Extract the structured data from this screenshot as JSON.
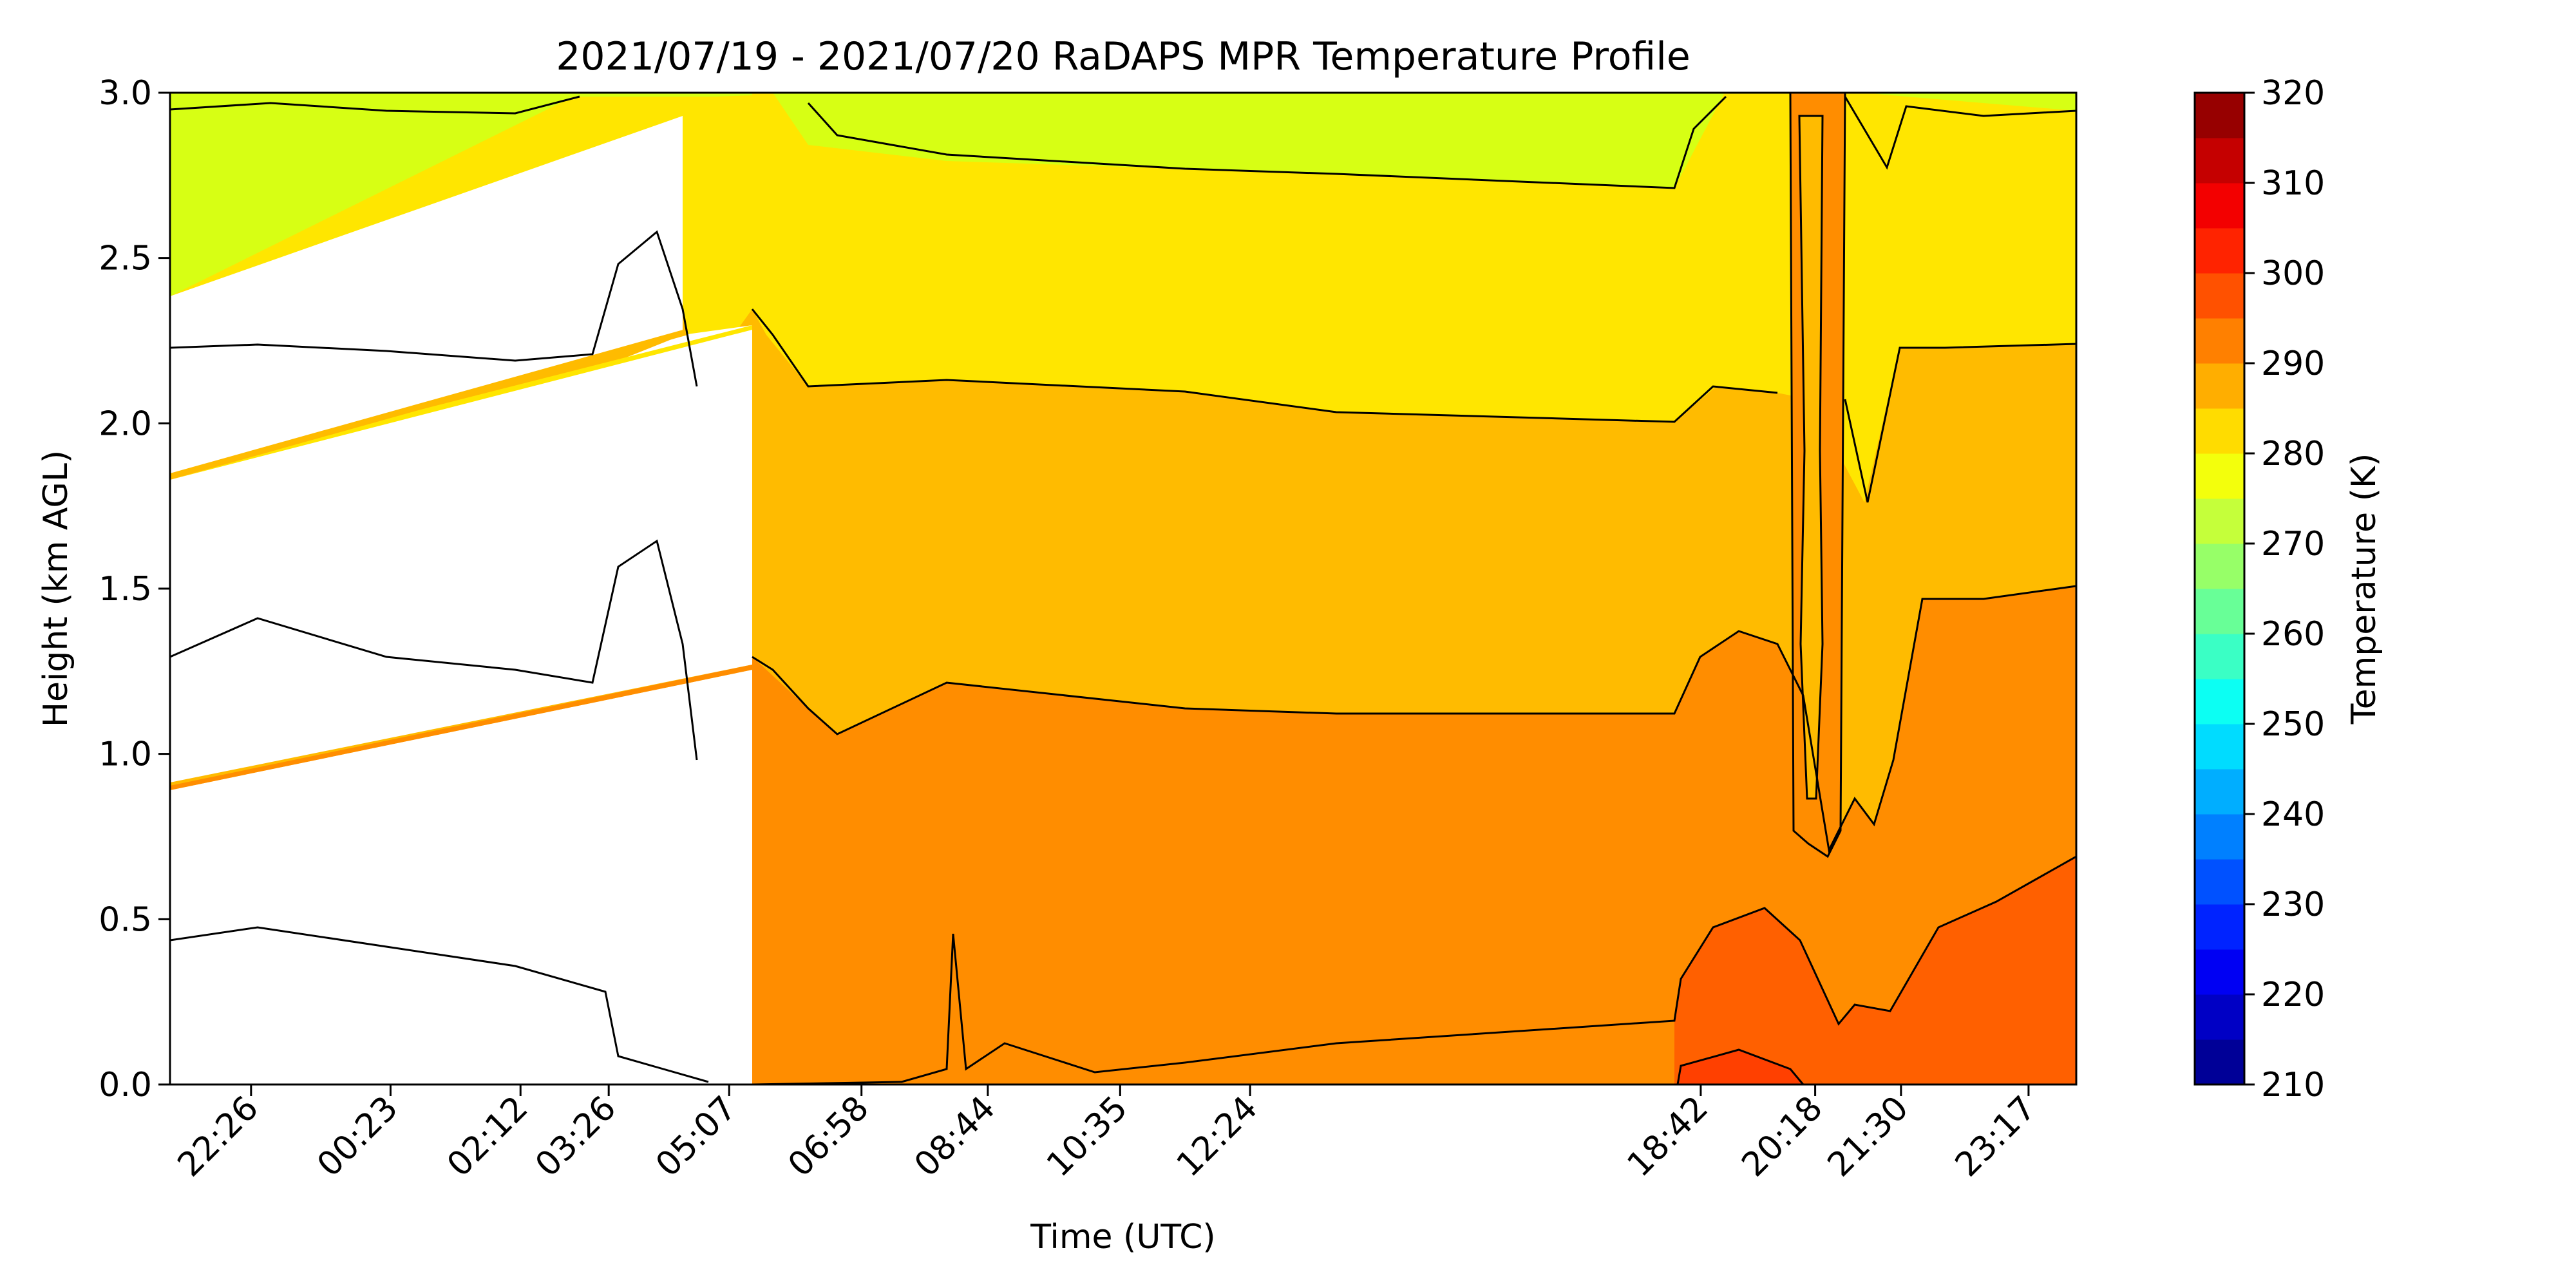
{
  "chart_data": {
    "type": "heatmap",
    "title": "2021/07/19 - 2021/07/20 RaDAPS MPR Temperature Profile",
    "xlabel": "Time (UTC)",
    "ylabel": "Height (km AGL)",
    "x_tick_labels": [
      "22:26",
      "00:23",
      "02:12",
      "03:26",
      "05:07",
      "06:58",
      "08:44",
      "10:35",
      "12:24",
      "18:42",
      "20:18",
      "21:30",
      "23:17"
    ],
    "x_tick_hours": [
      22.433,
      24.383,
      26.2,
      27.433,
      29.117,
      30.967,
      32.733,
      34.583,
      36.4,
      42.7,
      44.3,
      45.5,
      47.283
    ],
    "xlim_hours": [
      21.3,
      47.95
    ],
    "ylim": [
      0,
      3
    ],
    "y_ticks": [
      0.0,
      0.5,
      1.0,
      1.5,
      2.0,
      2.5,
      3.0
    ],
    "y_tick_labels": [
      "0.0",
      "0.5",
      "1.0",
      "1.5",
      "2.0",
      "2.5",
      "3.0"
    ],
    "colorbar": {
      "label": "Temperature (K)",
      "range": [
        210,
        320
      ],
      "step": 5,
      "tick_values": [
        210,
        220,
        230,
        240,
        250,
        260,
        270,
        280,
        290,
        300,
        310,
        320
      ],
      "tick_labels": [
        "210",
        "220",
        "230",
        "240",
        "250",
        "260",
        "270",
        "280",
        "290",
        "300",
        "310",
        "320"
      ],
      "colormap": "jet"
    },
    "contour_isolines_K": [
      275,
      280,
      285,
      290,
      295,
      300
    ],
    "contour_levels_km": {
      "t275_top": 2.95,
      "t280_285": 2.2,
      "t285_290": 1.25,
      "t290_295": 0.4
    },
    "missing_data_gap": [
      "03:30",
      "05:20"
    ]
  }
}
